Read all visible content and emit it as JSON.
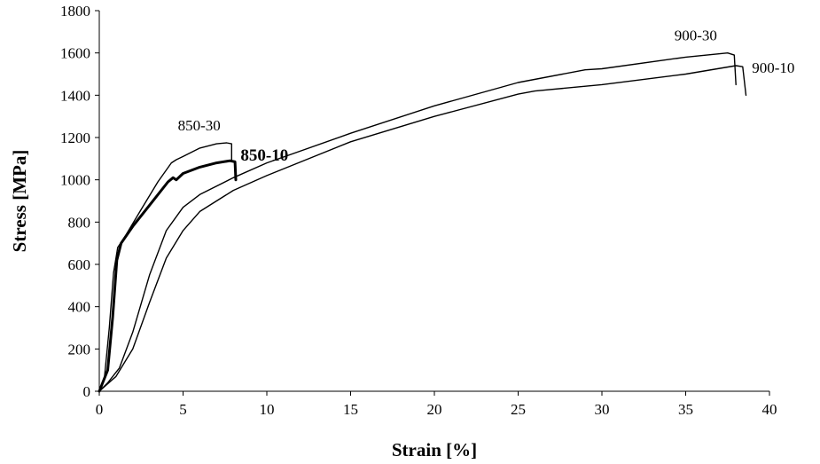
{
  "chart_data": {
    "type": "line",
    "title": "",
    "xlabel": "Strain  [%]",
    "ylabel": "Stress [MPa]",
    "xlim": [
      0,
      40
    ],
    "ylim": [
      0,
      1800
    ],
    "xticks": [
      0,
      5,
      10,
      15,
      20,
      25,
      30,
      35,
      40
    ],
    "yticks": [
      0,
      200,
      400,
      600,
      800,
      1000,
      1200,
      1400,
      1600,
      1800
    ],
    "grid": false,
    "legend": "none",
    "series": [
      {
        "name": "850-30",
        "bold": false,
        "points": [
          [
            0,
            0
          ],
          [
            0.3,
            60
          ],
          [
            0.6,
            300
          ],
          [
            0.85,
            560
          ],
          [
            1.1,
            680
          ],
          [
            1.6,
            740
          ],
          [
            2.5,
            860
          ],
          [
            3.5,
            990
          ],
          [
            4.3,
            1080
          ],
          [
            4.6,
            1095
          ],
          [
            5.0,
            1110
          ],
          [
            6.0,
            1150
          ],
          [
            7.0,
            1170
          ],
          [
            7.6,
            1175
          ],
          [
            7.9,
            1170
          ],
          [
            7.9,
            1090
          ]
        ]
      },
      {
        "name": "850-10",
        "bold": true,
        "points": [
          [
            0,
            0
          ],
          [
            0.5,
            100
          ],
          [
            0.8,
            350
          ],
          [
            1.05,
            620
          ],
          [
            1.3,
            700
          ],
          [
            2.0,
            780
          ],
          [
            3.0,
            880
          ],
          [
            4.1,
            990
          ],
          [
            4.4,
            1010
          ],
          [
            4.6,
            1000
          ],
          [
            5.0,
            1030
          ],
          [
            6.0,
            1060
          ],
          [
            7.0,
            1080
          ],
          [
            7.8,
            1090
          ],
          [
            8.1,
            1085
          ],
          [
            8.15,
            1000
          ]
        ]
      },
      {
        "name": "900-30",
        "bold": false,
        "points": [
          [
            0,
            0
          ],
          [
            0.5,
            40
          ],
          [
            1.2,
            110
          ],
          [
            2.0,
            280
          ],
          [
            3.0,
            550
          ],
          [
            4.0,
            760
          ],
          [
            5.0,
            870
          ],
          [
            6.0,
            930
          ],
          [
            8.0,
            1010
          ],
          [
            10,
            1080
          ],
          [
            15,
            1220
          ],
          [
            20,
            1350
          ],
          [
            25,
            1460
          ],
          [
            29,
            1520
          ],
          [
            30,
            1525
          ],
          [
            35,
            1580
          ],
          [
            37.5,
            1600
          ],
          [
            37.9,
            1590
          ],
          [
            38.0,
            1450
          ]
        ]
      },
      {
        "name": "900-10",
        "bold": false,
        "points": [
          [
            0,
            0
          ],
          [
            1.0,
            70
          ],
          [
            2.0,
            200
          ],
          [
            3.0,
            420
          ],
          [
            4.0,
            630
          ],
          [
            5.0,
            760
          ],
          [
            6.0,
            850
          ],
          [
            8.0,
            950
          ],
          [
            10,
            1020
          ],
          [
            15,
            1180
          ],
          [
            20,
            1300
          ],
          [
            25,
            1405
          ],
          [
            26,
            1420
          ],
          [
            30,
            1450
          ],
          [
            35,
            1500
          ],
          [
            38.0,
            1540
          ],
          [
            38.4,
            1535
          ],
          [
            38.6,
            1400
          ]
        ]
      }
    ]
  }
}
